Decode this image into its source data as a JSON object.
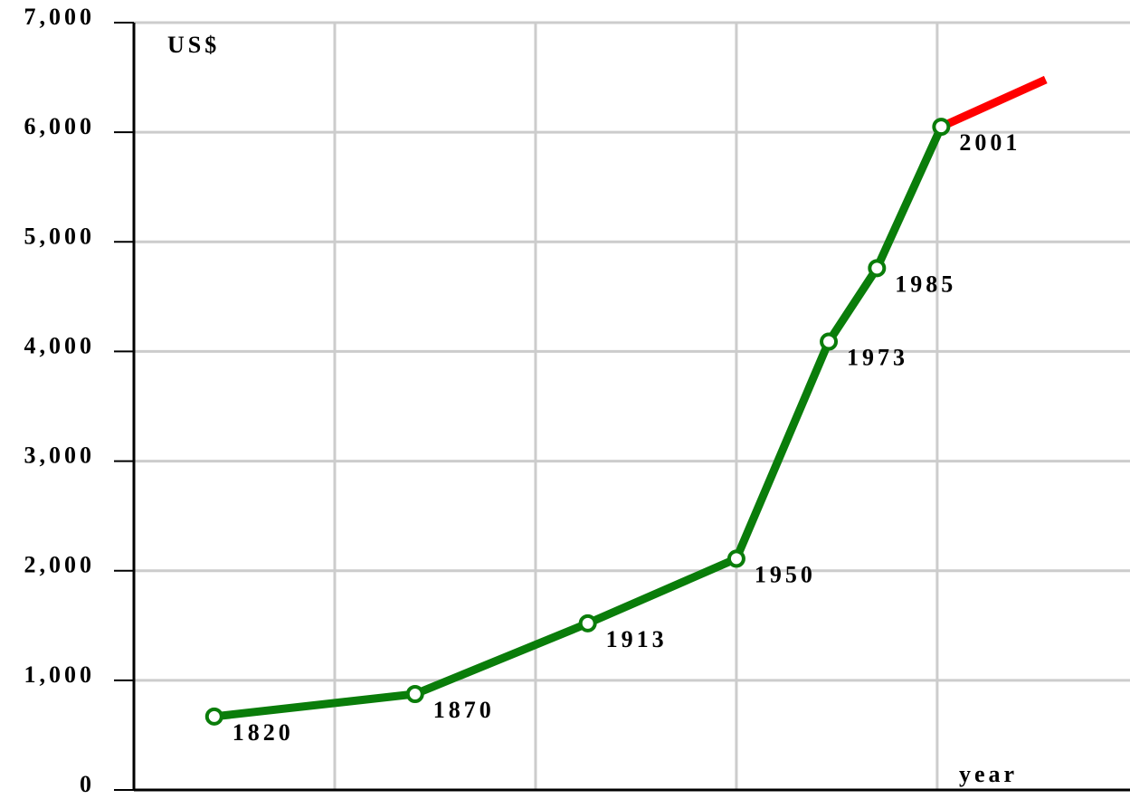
{
  "chart_data": {
    "type": "line",
    "y_label": "US$",
    "x_label": "year",
    "x": [
      1820,
      1870,
      1913,
      1950,
      1973,
      1985,
      2001
    ],
    "series": [
      {
        "color": "#0a7d0a",
        "values": [
          670,
          875,
          1520,
          2110,
          4090,
          4760,
          6050
        ]
      }
    ],
    "projection": {
      "color": "#ff0000",
      "x": [
        2001,
        2027
      ],
      "values": [
        6050,
        6480
      ]
    },
    "xlim": [
      1800,
      2048
    ],
    "xgrid": [
      1850,
      1900,
      1950,
      2000
    ],
    "ylim": [
      0,
      7000
    ],
    "yticks": [
      0,
      {
        "value": 1000,
        "label": "1,000"
      },
      {
        "value": 2000,
        "label": "2,000"
      },
      {
        "value": 3000,
        "label": "3,000"
      },
      {
        "value": 4000,
        "label": "4,000"
      },
      {
        "value": 5000,
        "label": "5,000"
      },
      {
        "value": 6000,
        "label": "6,000"
      },
      {
        "value": 7000,
        "label": "7,000"
      }
    ],
    "grid": true
  }
}
